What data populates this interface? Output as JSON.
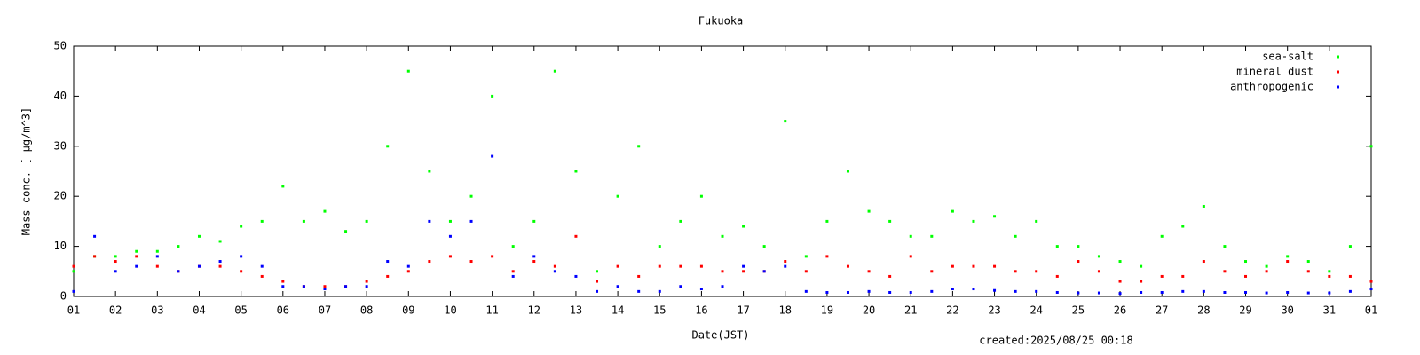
{
  "chart_data": {
    "type": "scatter",
    "title": "Fukuoka",
    "xlabel": "Date(JST)",
    "ylabel": "Mass conc. [ μg/m^3]",
    "footer": "created:2025/08/25 00:18",
    "legend": "top-right",
    "x": [
      1,
      1.5,
      2,
      2.5,
      3,
      3.5,
      4,
      4.5,
      5,
      5.5,
      6,
      6.5,
      7,
      7.5,
      8,
      8.5,
      9,
      9.5,
      10,
      10.5,
      11,
      11.5,
      12,
      12.5,
      13,
      13.5,
      14,
      14.5,
      15,
      15.5,
      16,
      16.5,
      17,
      17.5,
      18,
      18.5,
      19,
      19.5,
      20,
      20.5,
      21,
      21.5,
      22,
      22.5,
      23,
      23.5,
      24,
      24.5,
      25,
      25.5,
      26,
      26.5,
      27,
      27.5,
      28,
      28.5,
      29,
      29.5,
      30,
      30.5,
      31,
      31.5,
      32
    ],
    "series": [
      {
        "name": "sea-salt",
        "color": "#00ff00",
        "values": [
          5,
          8,
          8,
          9,
          9,
          10,
          12,
          11,
          14,
          15,
          22,
          15,
          17,
          13,
          15,
          30,
          45,
          25,
          15,
          20,
          40,
          10,
          15,
          45,
          25,
          5,
          20,
          30,
          10,
          15,
          20,
          12,
          14,
          10,
          35,
          8,
          15,
          25,
          17,
          15,
          12,
          12,
          17,
          15,
          16,
          12,
          15,
          10,
          10,
          8,
          7,
          6,
          12,
          14,
          18,
          10,
          7,
          6,
          8,
          7,
          5,
          10,
          30
        ]
      },
      {
        "name": "mineral dust",
        "color": "#ff0000",
        "values": [
          6,
          8,
          7,
          8,
          6,
          5,
          6,
          6,
          5,
          4,
          3,
          2,
          2,
          2,
          3,
          4,
          5,
          7,
          8,
          7,
          8,
          5,
          7,
          6,
          12,
          3,
          6,
          4,
          6,
          6,
          6,
          5,
          5,
          5,
          7,
          5,
          8,
          6,
          5,
          4,
          8,
          5,
          6,
          6,
          6,
          5,
          5,
          4,
          7,
          5,
          3,
          3,
          4,
          4,
          7,
          5,
          4,
          5,
          7,
          5,
          4,
          4,
          3
        ]
      },
      {
        "name": "anthropogenic",
        "color": "#0000ff",
        "values": [
          1,
          12,
          5,
          6,
          8,
          5,
          6,
          7,
          8,
          6,
          2,
          2,
          1.5,
          2,
          2,
          7,
          6,
          15,
          12,
          15,
          28,
          4,
          8,
          5,
          4,
          1,
          2,
          1,
          1,
          2,
          1.5,
          2,
          6,
          5,
          6,
          1,
          0.8,
          0.8,
          1,
          0.8,
          0.8,
          1,
          1.5,
          1.5,
          1.2,
          1,
          1,
          0.8,
          0.7,
          0.7,
          0.6,
          0.8,
          0.8,
          1,
          1,
          0.8,
          0.8,
          0.7,
          0.8,
          0.7,
          0.7,
          1,
          1.5
        ]
      }
    ],
    "xlim": [
      1,
      32
    ],
    "xticks": [
      {
        "value": 1,
        "label": "01"
      },
      {
        "value": 2,
        "label": "02"
      },
      {
        "value": 3,
        "label": "03"
      },
      {
        "value": 4,
        "label": "04"
      },
      {
        "value": 5,
        "label": "05"
      },
      {
        "value": 6,
        "label": "06"
      },
      {
        "value": 7,
        "label": "07"
      },
      {
        "value": 8,
        "label": "08"
      },
      {
        "value": 9,
        "label": "09"
      },
      10,
      11,
      12,
      13,
      14,
      15,
      16,
      17,
      18,
      19,
      20,
      21,
      22,
      23,
      24,
      25,
      26,
      27,
      28,
      29,
      30,
      31,
      {
        "value": 32,
        "label": "01"
      }
    ],
    "ylim": [
      0,
      50
    ],
    "yticks": [
      0,
      10,
      20,
      30,
      40,
      50
    ]
  }
}
